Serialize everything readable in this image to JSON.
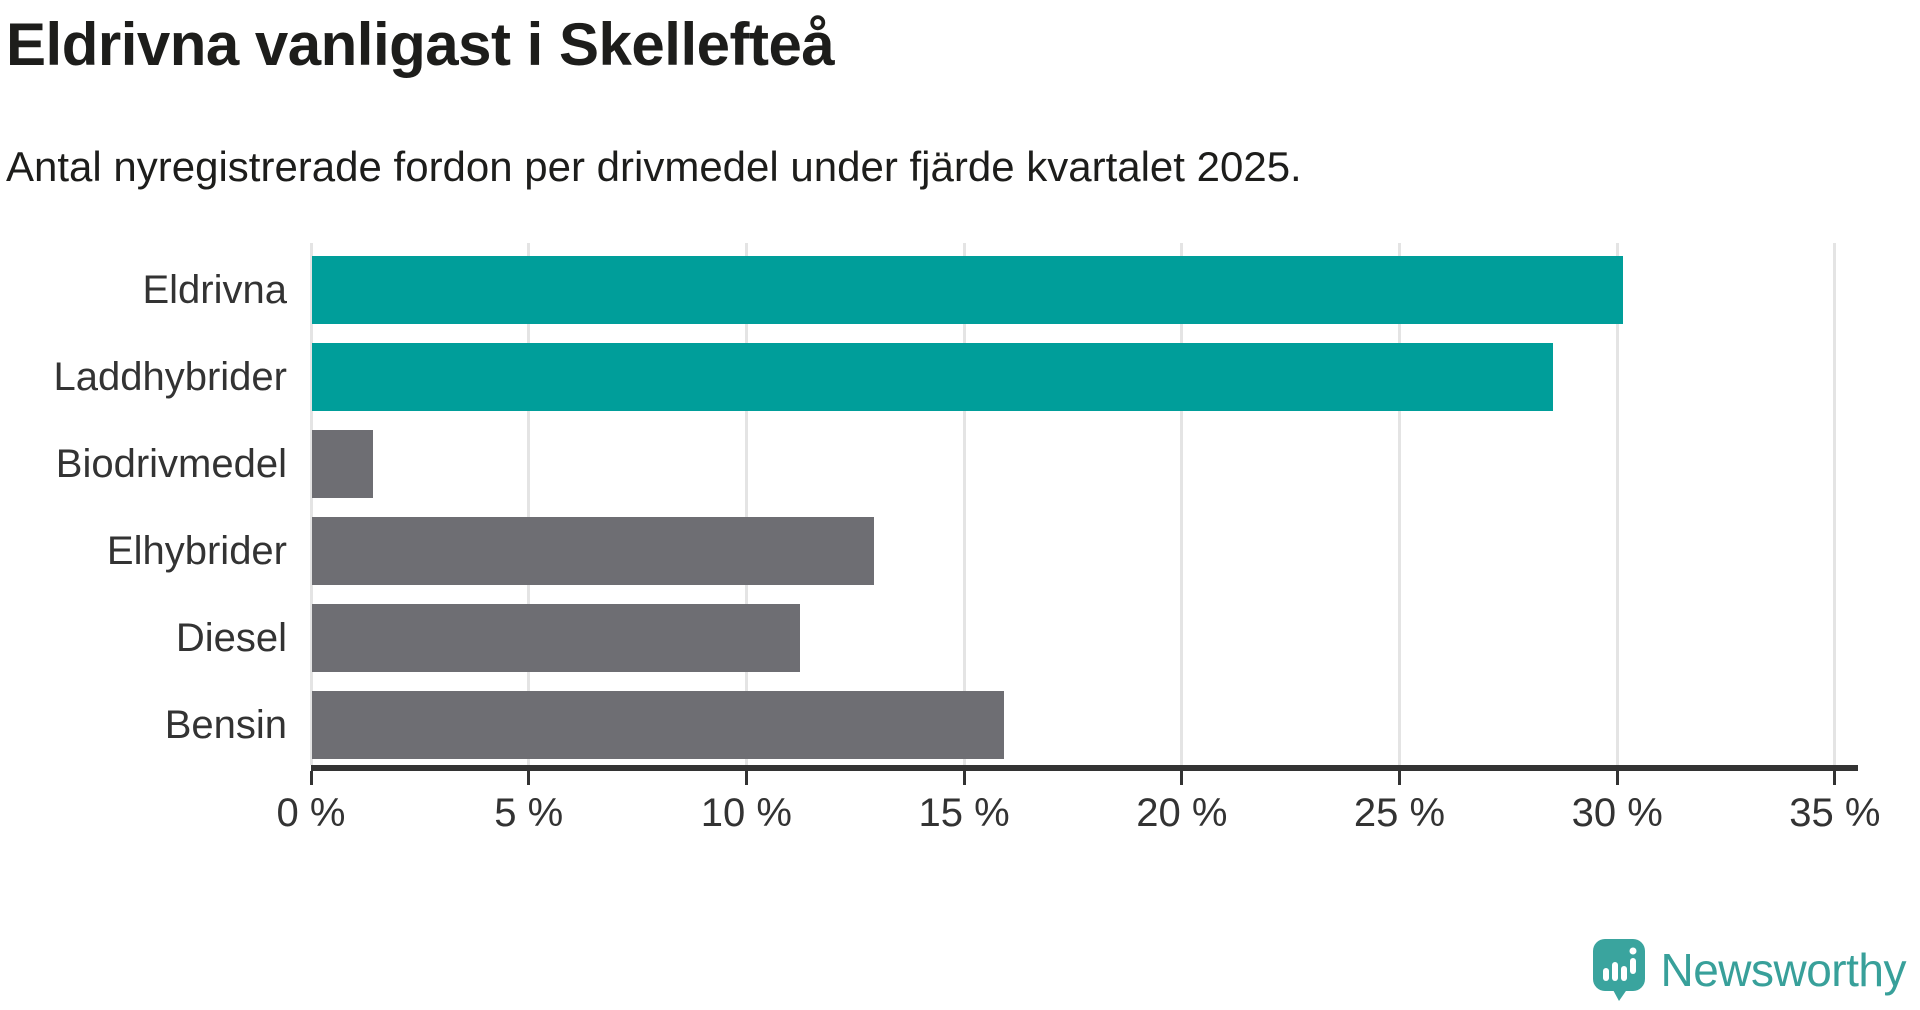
{
  "header": {
    "title": "Eldrivna vanligast i Skellefteå",
    "subtitle": "Antal nyregistrerade fordon per drivmedel under fjärde kvartalet 2025."
  },
  "chart_data": {
    "type": "bar",
    "orientation": "horizontal",
    "title": "Eldrivna vanligast i Skellefteå",
    "subtitle": "Antal nyregistrerade fordon per drivmedel under fjärde kvartalet 2025.",
    "categories": [
      "Eldrivna",
      "Laddhybrider",
      "Biodrivmedel",
      "Elhybrider",
      "Diesel",
      "Bensin"
    ],
    "values": [
      30.1,
      28.5,
      1.4,
      12.9,
      11.2,
      15.9
    ],
    "unit": "%",
    "bar_colors": [
      "#009e9a",
      "#009e9a",
      "#6e6e73",
      "#6e6e73",
      "#6e6e73",
      "#6e6e73"
    ],
    "highlight_color": "#009e9a",
    "default_color": "#6e6e73",
    "xlabel": "",
    "ylabel": "",
    "xlim": [
      0,
      35.5
    ],
    "x_tick_values": [
      0,
      5,
      10,
      15,
      20,
      25,
      30,
      35
    ],
    "x_tick_labels": [
      "0 %",
      "5 %",
      "10 %",
      "15 %",
      "20 %",
      "25 %",
      "30 %",
      "35 %"
    ],
    "grid": "vertical",
    "gridline_color": "#e4e4e4",
    "axis_color": "#333333",
    "legend": "none"
  },
  "branding": {
    "name": "Newsworthy",
    "text_color": "#38a09a",
    "icon": "newsworthy-speech-bubble-chart-icon",
    "icon_color": "#3aa49e"
  }
}
